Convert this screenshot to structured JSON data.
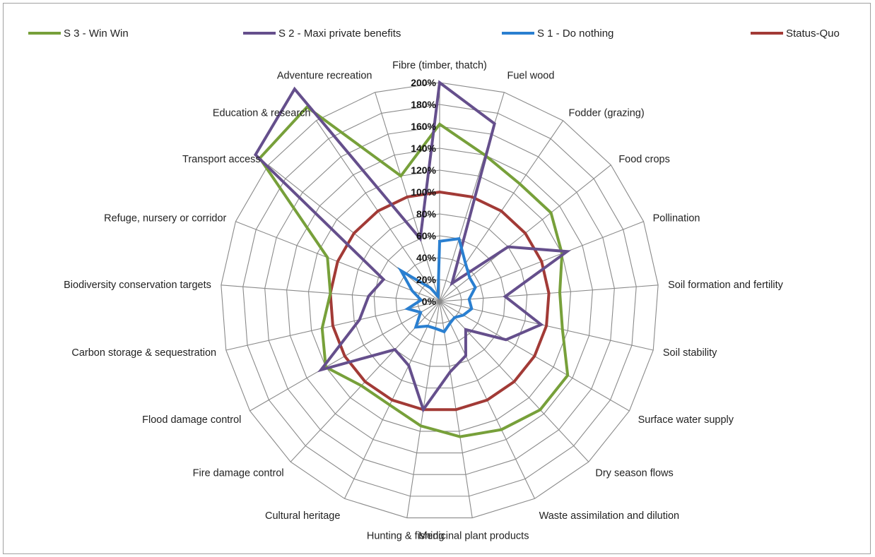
{
  "chart_data": {
    "type": "radar",
    "title": "",
    "categories": [
      "Fibre (timber, thatch)",
      "Fuel wood",
      "Fodder (grazing)",
      "Food crops",
      "Pollination",
      "Soil formation and fertility",
      "Soil stability",
      "Surface water supply",
      "Dry season flows",
      "Waste assimilation and dilution",
      "Medicinal plant products",
      "Hunting & fishing",
      "Cultural heritage",
      "Fire damage control",
      "Flood damage control",
      "Carbon storage & sequestration",
      "Biodiversity conservation targets",
      "Refuge, nursery or corridor",
      "Transport access",
      "Education & research",
      "Adventure recreation"
    ],
    "ticks": [
      "0%",
      "20%",
      "40%",
      "60%",
      "80%",
      "100%",
      "120%",
      "140%",
      "160%",
      "180%",
      "200%"
    ],
    "rmax": 200,
    "series": [
      {
        "name": "S 3 - Win Win",
        "color": "#77a03a",
        "values": [
          162,
          140,
          130,
          130,
          120,
          110,
          115,
          135,
          135,
          130,
          125,
          115,
          105,
          105,
          120,
          110,
          100,
          110,
          210,
          215,
          120
        ]
      },
      {
        "name": "S 2 - Maxi private benefits",
        "color": "#654f8c",
        "values": [
          200,
          170,
          20,
          80,
          125,
          60,
          95,
          70,
          35,
          55,
          65,
          100,
          65,
          60,
          125,
          75,
          65,
          55,
          215,
          235,
          60
        ]
      },
      {
        "name": "S 1 - Do nothing",
        "color": "#2a7fd0",
        "values": [
          55,
          60,
          42,
          35,
          35,
          27,
          30,
          25,
          20,
          22,
          28,
          25,
          25,
          32,
          20,
          30,
          17,
          27,
          45,
          15,
          5
        ]
      },
      {
        "name": "Status-Quo",
        "color": "#a23a36",
        "values": [
          100,
          100,
          100,
          100,
          100,
          100,
          100,
          100,
          100,
          100,
          100,
          100,
          100,
          100,
          100,
          100,
          100,
          100,
          100,
          100,
          100
        ]
      }
    ]
  },
  "legend": {
    "items": [
      {
        "label": "S 3 - Win Win",
        "color": "#77a03a"
      },
      {
        "label": "S 2 - Maxi private benefits",
        "color": "#654f8c"
      },
      {
        "label": "S 1 - Do nothing",
        "color": "#2a7fd0"
      },
      {
        "label": "Status-Quo",
        "color": "#a23a36"
      }
    ]
  }
}
